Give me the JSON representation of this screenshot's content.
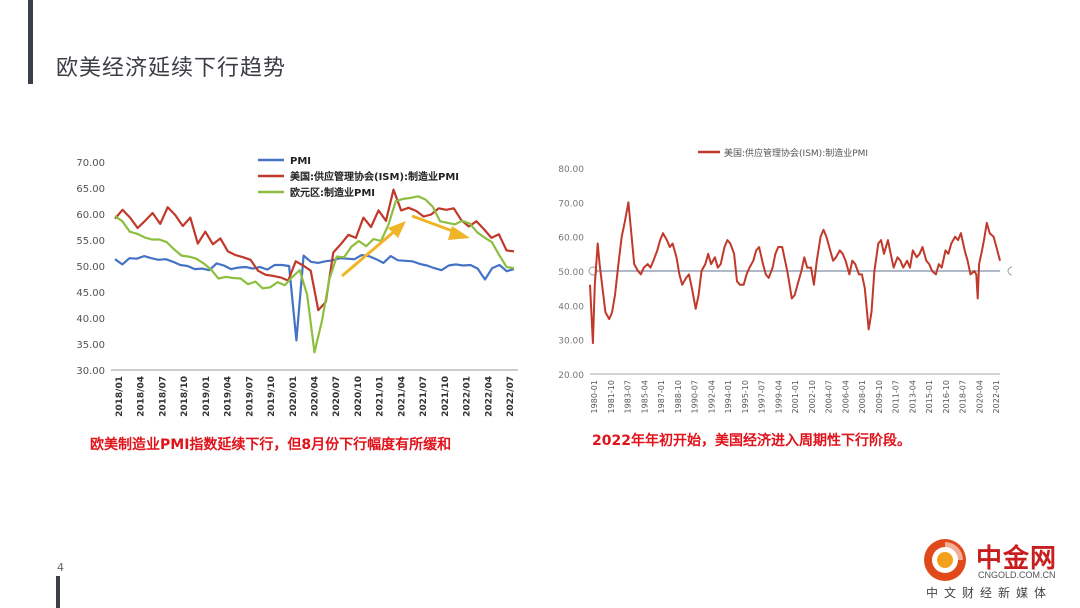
{
  "slide": {
    "title": "欧美经济延续下行趋势",
    "page_number": "4",
    "caption_left": "欧美制造业PMI指数延续下行，但8月份下行幅度有所缓和",
    "caption_right": "2022年年初开始，美国经济进入周期性下行阶段。"
  },
  "logo": {
    "name": "中金网",
    "url": "CNGOLD.COM.CN",
    "tagline": "中文财经新媒体"
  },
  "colors": {
    "pmi": "#4472c4",
    "ism": "#c0392b",
    "euro": "#8cbf3f",
    "arrow": "#f0b428",
    "ism_long": "#c0392b",
    "threshold_line": "#7f8fa6"
  },
  "chart_data": [
    {
      "type": "line",
      "ylim": [
        30,
        70
      ],
      "yticks": [
        "70.00",
        "65.00",
        "60.00",
        "55.00",
        "50.00",
        "45.00",
        "40.00",
        "35.00",
        "30.00"
      ],
      "xticks": [
        "2018/01",
        "2018/04",
        "2018/07",
        "2018/10",
        "2019/01",
        "2019/04",
        "2019/07",
        "2019/10",
        "2020/01",
        "2020/04",
        "2020/07",
        "2020/10",
        "2021/01",
        "2021/04",
        "2021/07",
        "2021/10",
        "2022/01",
        "2022/04",
        "2022/07"
      ],
      "legend_position": "top-center",
      "series": [
        {
          "name": "PMI",
          "color_key": "pmi",
          "values": [
            51.3,
            50.3,
            51.5,
            51.4,
            51.9,
            51.5,
            51.2,
            51.3,
            50.8,
            50.2,
            50.0,
            49.4,
            49.5,
            49.2,
            50.5,
            50.1,
            49.4,
            49.7,
            49.8,
            49.5,
            49.8,
            49.3,
            50.2,
            50.2,
            50.0,
            35.7,
            52.0,
            50.8,
            50.6,
            50.9,
            51.1,
            51.5,
            51.4,
            51.3,
            52.1,
            51.9,
            51.3,
            50.6,
            51.9,
            51.1,
            51.0,
            50.9,
            50.4,
            50.1,
            49.6,
            49.2,
            50.1,
            50.3,
            50.1,
            50.2,
            49.5,
            47.4,
            49.6,
            50.2,
            49.0,
            49.4
          ]
        },
        {
          "name": "美国:供应管理协会(ISM):制造业PMI",
          "color_key": "ism",
          "values": [
            59.1,
            60.8,
            59.3,
            57.3,
            58.7,
            60.2,
            58.1,
            61.3,
            59.8,
            57.7,
            59.3,
            54.3,
            56.6,
            54.2,
            55.3,
            52.8,
            52.1,
            51.7,
            51.2,
            49.1,
            48.3,
            48.1,
            47.8,
            47.2,
            50.9,
            50.1,
            49.1,
            41.5,
            43.1,
            52.6,
            54.2,
            56.0,
            55.4,
            59.3,
            57.5,
            60.7,
            58.7,
            64.7,
            60.7,
            61.2,
            60.6,
            59.5,
            59.9,
            61.1,
            60.8,
            61.1,
            58.8,
            57.6,
            58.6,
            57.1,
            55.4,
            56.1,
            53.0,
            52.8
          ]
        },
        {
          "name": "欧元区:制造业PMI",
          "color_key": "euro",
          "values": [
            59.6,
            58.6,
            56.6,
            56.2,
            55.5,
            55.1,
            55.1,
            54.6,
            53.2,
            52.0,
            51.8,
            51.4,
            50.5,
            49.3,
            47.6,
            47.9,
            47.7,
            47.6,
            46.5,
            47.0,
            45.7,
            45.9,
            46.9,
            46.3,
            47.9,
            49.2,
            44.5,
            33.4,
            39.4,
            47.4,
            51.8,
            51.7,
            53.7,
            54.8,
            53.8,
            55.2,
            54.8,
            57.9,
            62.5,
            62.9,
            63.1,
            63.4,
            62.8,
            61.4,
            58.6,
            58.3,
            58.0,
            58.7,
            58.2,
            56.5,
            55.5,
            54.6,
            52.1,
            49.8,
            49.6
          ]
        }
      ],
      "annotations": [
        "上行箭头",
        "下行箭头"
      ]
    },
    {
      "type": "line",
      "ylim": [
        20,
        80
      ],
      "yticks": [
        "80.00",
        "70.00",
        "60.00",
        "50.00",
        "40.00",
        "30.00",
        "20.00"
      ],
      "xticks": [
        "1980-01",
        "1981-10",
        "1983-07",
        "1985-04",
        "1987-01",
        "1988-10",
        "1990-07",
        "1992-04",
        "1994-01",
        "1995-10",
        "1997-07",
        "1999-04",
        "2001-01",
        "2002-10",
        "2004-07",
        "2006-04",
        "2008-01",
        "2009-10",
        "2011-07",
        "2013-04",
        "2015-01",
        "2016-10",
        "2018-07",
        "2020-04",
        "2022-01"
      ],
      "xrange": [
        1980.0,
        2022.67
      ],
      "legend_position": "top",
      "series": [
        {
          "name": "美国:供应管理协会(ISM):制造业PMI",
          "color_key": "ism_long",
          "x": [
            1980.0,
            1980.3,
            1980.5,
            1980.8,
            1981.0,
            1981.3,
            1981.6,
            1982.0,
            1982.3,
            1982.6,
            1983.0,
            1983.3,
            1983.6,
            1984.0,
            1984.3,
            1984.6,
            1985.0,
            1985.3,
            1985.6,
            1986.0,
            1986.3,
            1986.6,
            1987.0,
            1987.3,
            1987.6,
            1988.0,
            1988.3,
            1988.6,
            1989.0,
            1989.3,
            1989.6,
            1990.0,
            1990.3,
            1990.6,
            1991.0,
            1991.3,
            1991.6,
            1992.0,
            1992.3,
            1992.6,
            1993.0,
            1993.3,
            1993.6,
            1994.0,
            1994.3,
            1994.6,
            1995.0,
            1995.3,
            1995.6,
            1996.0,
            1996.3,
            1996.6,
            1997.0,
            1997.3,
            1997.6,
            1998.0,
            1998.3,
            1998.6,
            1999.0,
            1999.3,
            1999.6,
            2000.0,
            2000.3,
            2000.6,
            2001.0,
            2001.3,
            2001.6,
            2002.0,
            2002.3,
            2002.6,
            2003.0,
            2003.3,
            2003.6,
            2004.0,
            2004.3,
            2004.6,
            2005.0,
            2005.3,
            2005.6,
            2006.0,
            2006.3,
            2006.6,
            2007.0,
            2007.3,
            2007.6,
            2008.0,
            2008.3,
            2008.6,
            2008.9,
            2009.0,
            2009.3,
            2009.6,
            2010.0,
            2010.3,
            2010.6,
            2011.0,
            2011.3,
            2011.6,
            2012.0,
            2012.3,
            2012.6,
            2013.0,
            2013.3,
            2013.6,
            2014.0,
            2014.3,
            2014.6,
            2015.0,
            2015.3,
            2015.6,
            2016.0,
            2016.3,
            2016.6,
            2017.0,
            2017.3,
            2017.6,
            2018.0,
            2018.3,
            2018.6,
            2019.0,
            2019.3,
            2019.6,
            2020.0,
            2020.2,
            2020.35,
            2020.5,
            2020.8,
            2021.0,
            2021.3,
            2021.6,
            2022.0,
            2022.3,
            2022.67
          ],
          "values": [
            46.0,
            29.0,
            46.0,
            58.0,
            52.0,
            45.0,
            38.0,
            36.0,
            38.0,
            43.0,
            53.0,
            60.0,
            64.0,
            70.0,
            61.0,
            52.0,
            50.0,
            49.0,
            51.0,
            52.0,
            51.0,
            53.0,
            56.0,
            59.0,
            61.0,
            59.0,
            57.0,
            58.0,
            54.0,
            49.0,
            46.0,
            48.0,
            49.0,
            45.0,
            39.0,
            43.0,
            50.0,
            52.0,
            55.0,
            52.0,
            54.0,
            51.0,
            52.0,
            57.0,
            59.0,
            58.0,
            55.0,
            47.0,
            46.0,
            46.0,
            49.0,
            51.0,
            53.0,
            56.0,
            57.0,
            52.0,
            49.0,
            48.0,
            51.0,
            55.0,
            57.0,
            57.0,
            53.0,
            49.0,
            42.0,
            43.0,
            46.0,
            50.0,
            54.0,
            51.0,
            51.0,
            46.0,
            53.0,
            60.0,
            62.0,
            60.0,
            56.0,
            53.0,
            54.0,
            56.0,
            55.0,
            53.0,
            49.0,
            53.0,
            52.0,
            49.0,
            49.0,
            45.0,
            36.0,
            33.0,
            38.0,
            50.0,
            58.0,
            59.0,
            55.0,
            59.0,
            55.0,
            51.0,
            54.0,
            53.0,
            51.0,
            53.0,
            51.0,
            56.0,
            54.0,
            55.0,
            57.0,
            53.0,
            52.0,
            50.0,
            49.0,
            52.0,
            51.0,
            56.0,
            55.0,
            58.0,
            60.0,
            59.0,
            61.0,
            56.0,
            53.0,
            49.0,
            50.0,
            49.0,
            42.0,
            52.0,
            56.0,
            59.0,
            64.0,
            61.0,
            60.0,
            57.0,
            53.0
          ]
        }
      ],
      "reference_line": 50
    }
  ]
}
